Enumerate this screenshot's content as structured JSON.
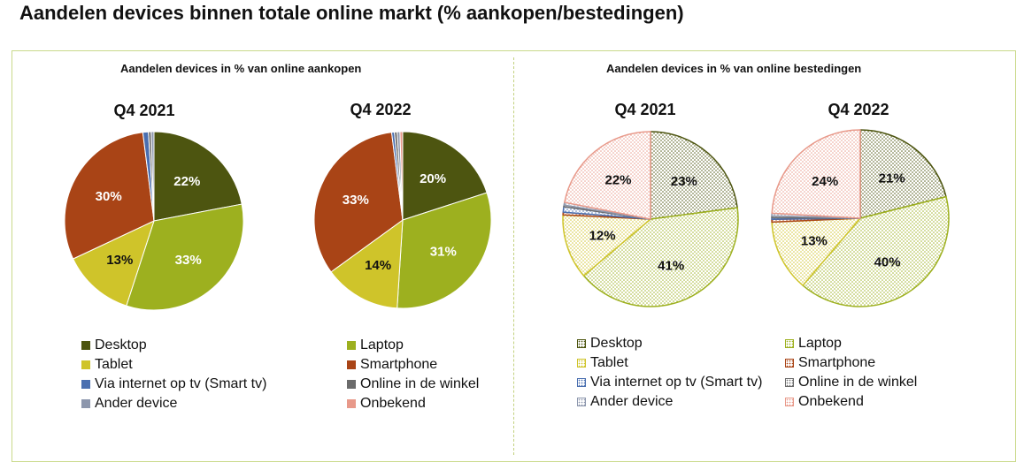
{
  "title": "Aandelen devices binnen totale online markt (% aankopen/bestedingen)",
  "colors": {
    "Desktop": "#4d5510",
    "Laptop": "#9db01f",
    "Tablet": "#cfc42a",
    "Smartphone": "#a94416",
    "Via internet op tv (Smart tv)": "#4a6fb0",
    "Online in de winkel": "#6b6b6b",
    "Ander device": "#8d97ad",
    "Onbekend": "#e8998a"
  },
  "panels": [
    {
      "title": "Aandelen devices in % van online aankopen",
      "legend": [
        "Desktop",
        "Laptop",
        "Tablet",
        "Smartphone",
        "Via internet op tv (Smart tv)",
        "Online in de winkel",
        "Ander device",
        "Onbekend"
      ]
    },
    {
      "title": "Aandelen devices in % van online bestedingen",
      "legend": [
        "Desktop",
        "Laptop",
        "Tablet",
        "Smartphone",
        "Via internet op tv (Smart tv)",
        "Online in de winkel",
        "Ander device",
        "Onbekend"
      ]
    }
  ],
  "chart_data": [
    {
      "type": "pie",
      "title": "Q4 2021",
      "panel": "Aandelen devices in % van online aankopen",
      "labels": [
        "Desktop",
        "Laptop",
        "Tablet",
        "Smartphone",
        "Via internet op tv (Smart tv)",
        "Online in de winkel",
        "Ander device",
        "Onbekend"
      ],
      "values": [
        22,
        33,
        13,
        30,
        1,
        0.5,
        0.5,
        0
      ],
      "data_labels": [
        "22%",
        "33%",
        "13%",
        "30%",
        "",
        "",
        "",
        ""
      ],
      "pattern": "solid"
    },
    {
      "type": "pie",
      "title": "Q4 2022",
      "panel": "Aandelen devices in % van online aankopen",
      "labels": [
        "Desktop",
        "Laptop",
        "Tablet",
        "Smartphone",
        "Via internet op tv (Smart tv)",
        "Online in de winkel",
        "Ander device",
        "Onbekend"
      ],
      "values": [
        20,
        31,
        14,
        33,
        0.5,
        0.5,
        0.5,
        0.5
      ],
      "data_labels": [
        "20%",
        "31%",
        "14%",
        "33%",
        "",
        "",
        "",
        ""
      ],
      "pattern": "solid"
    },
    {
      "type": "pie",
      "title": "Q4 2021",
      "panel": "Aandelen devices in % van online bestedingen",
      "labels": [
        "Desktop",
        "Laptop",
        "Tablet",
        "Smartphone",
        "Via internet op tv (Smart tv)",
        "Online in de winkel",
        "Ander device",
        "Onbekend"
      ],
      "values": [
        23,
        41,
        12,
        0.5,
        1,
        0.3,
        0.5,
        22
      ],
      "data_labels": [
        "23%",
        "41%",
        "12%",
        "",
        "",
        "",
        "",
        "22%"
      ],
      "pattern": "dotted"
    },
    {
      "type": "pie",
      "title": "Q4 2022",
      "panel": "Aandelen devices in % van online bestedingen",
      "labels": [
        "Desktop",
        "Laptop",
        "Tablet",
        "Smartphone",
        "Via internet op tv (Smart tv)",
        "Online in de winkel",
        "Ander device",
        "Onbekend"
      ],
      "values": [
        21,
        40,
        13,
        0.5,
        0.3,
        0.3,
        0.5,
        24
      ],
      "data_labels": [
        "21%",
        "40%",
        "13%",
        "",
        "",
        "",
        "",
        "24%"
      ],
      "pattern": "dotted"
    }
  ]
}
